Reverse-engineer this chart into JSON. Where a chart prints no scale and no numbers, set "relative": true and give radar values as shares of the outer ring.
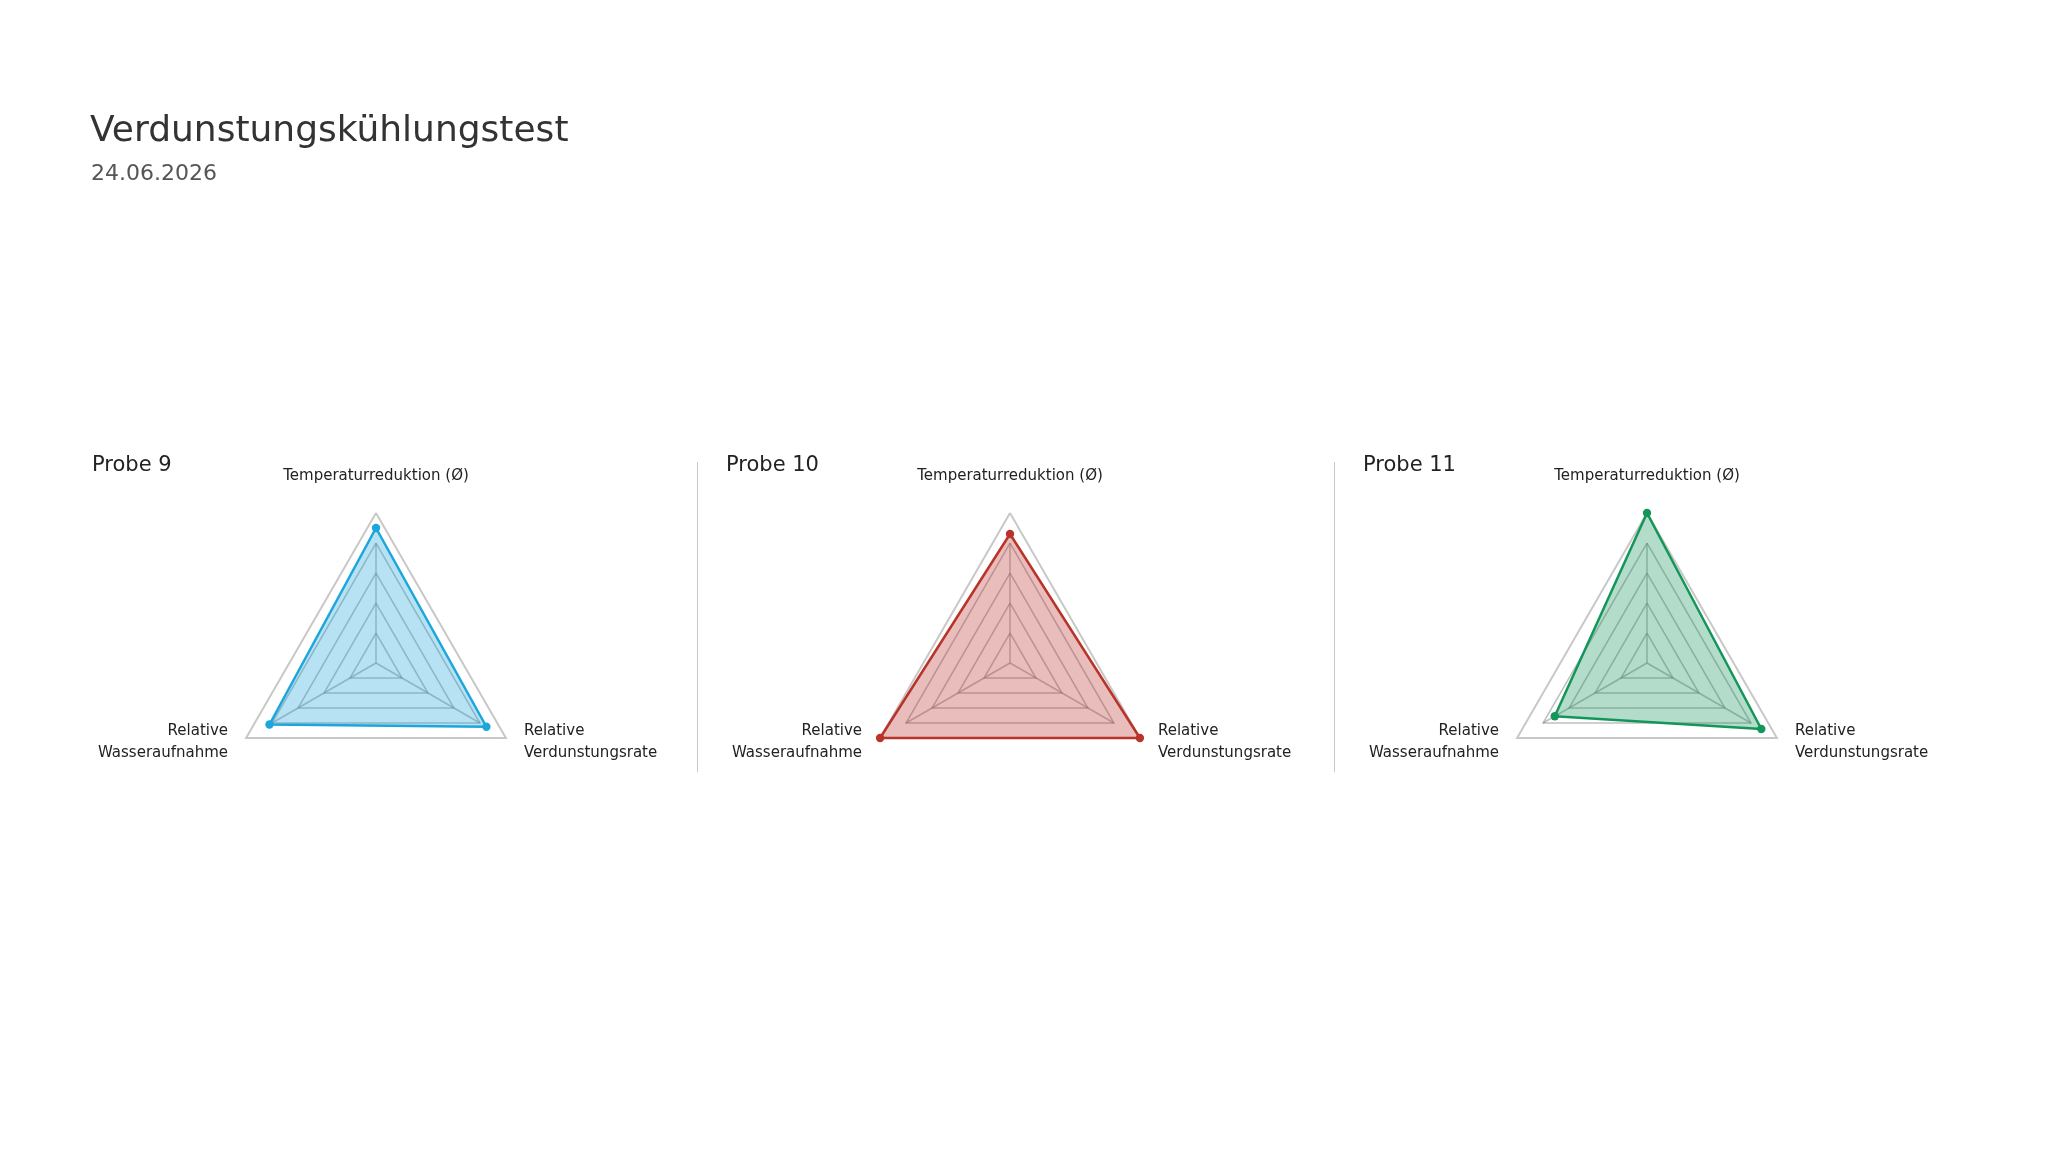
{
  "chart_data": [
    {
      "type": "radar",
      "title": "Probe 9",
      "annotations": [
        "Verdunstungskühlungstest",
        "24.06.2026"
      ],
      "categories": [
        "Temperaturreduktion (Ø)",
        "Relative Verdunstungsrate",
        "Relative Wasseraufnahme"
      ],
      "relative": true,
      "grid": true,
      "marker": "circle",
      "series": [
        {
          "color": "#1ba6dc",
          "values": [
            0.9,
            0.85,
            0.82
          ]
        }
      ]
    },
    {
      "type": "radar",
      "title": "Probe 10",
      "categories": [
        "Temperaturreduktion (Ø)",
        "Relative Verdunstungsrate",
        "Relative Wasseraufnahme"
      ],
      "relative": true,
      "grid": true,
      "marker": "circle",
      "series": [
        {
          "color": "#b8332a",
          "values": [
            0.86,
            1,
            1
          ]
        }
      ]
    },
    {
      "type": "radar",
      "title": "Probe 11",
      "categories": [
        "Temperaturreduktion (Ø)",
        "Relative Verdunstungsrate",
        "Relative Wasseraufnahme"
      ],
      "relative": true,
      "grid": true,
      "marker": "circle",
      "series": [
        {
          "color": "#14965a",
          "values": [
            1,
            0.88,
            0.71
          ]
        }
      ]
    }
  ]
}
